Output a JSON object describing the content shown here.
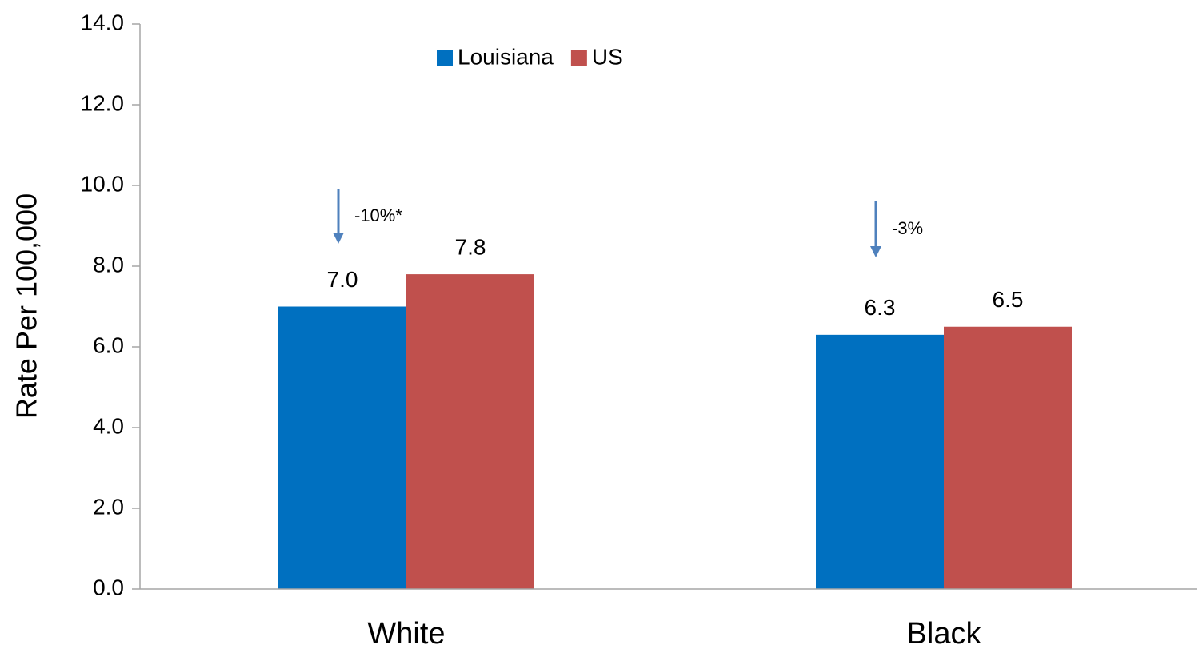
{
  "chart_data": {
    "type": "bar",
    "y_label": "Rate Per 100,000",
    "categories": [
      "White",
      "Black"
    ],
    "series": [
      {
        "name": "Louisiana",
        "color": "#0070c0",
        "values": [
          7,
          6.3
        ],
        "value_labels": [
          "7.0",
          "6.3"
        ]
      },
      {
        "name": "US",
        "color": "#c0504d",
        "values": [
          7.8,
          6.5
        ],
        "value_labels": [
          "7.8",
          "6.5"
        ]
      }
    ],
    "ylim": [
      0,
      14
    ],
    "yticks": [
      {
        "value": 0,
        "label": "0.0"
      },
      {
        "value": 2,
        "label": "2.0"
      },
      {
        "value": 4,
        "label": "4.0"
      },
      {
        "value": 6,
        "label": "6.0"
      },
      {
        "value": 8,
        "label": "8.0"
      },
      {
        "value": 10,
        "label": "10.0"
      },
      {
        "value": 12,
        "label": "12.0"
      },
      {
        "value": 14,
        "label": "14.0"
      }
    ],
    "annotations": [
      "-10%*",
      "-3%"
    ],
    "legend": "top"
  }
}
